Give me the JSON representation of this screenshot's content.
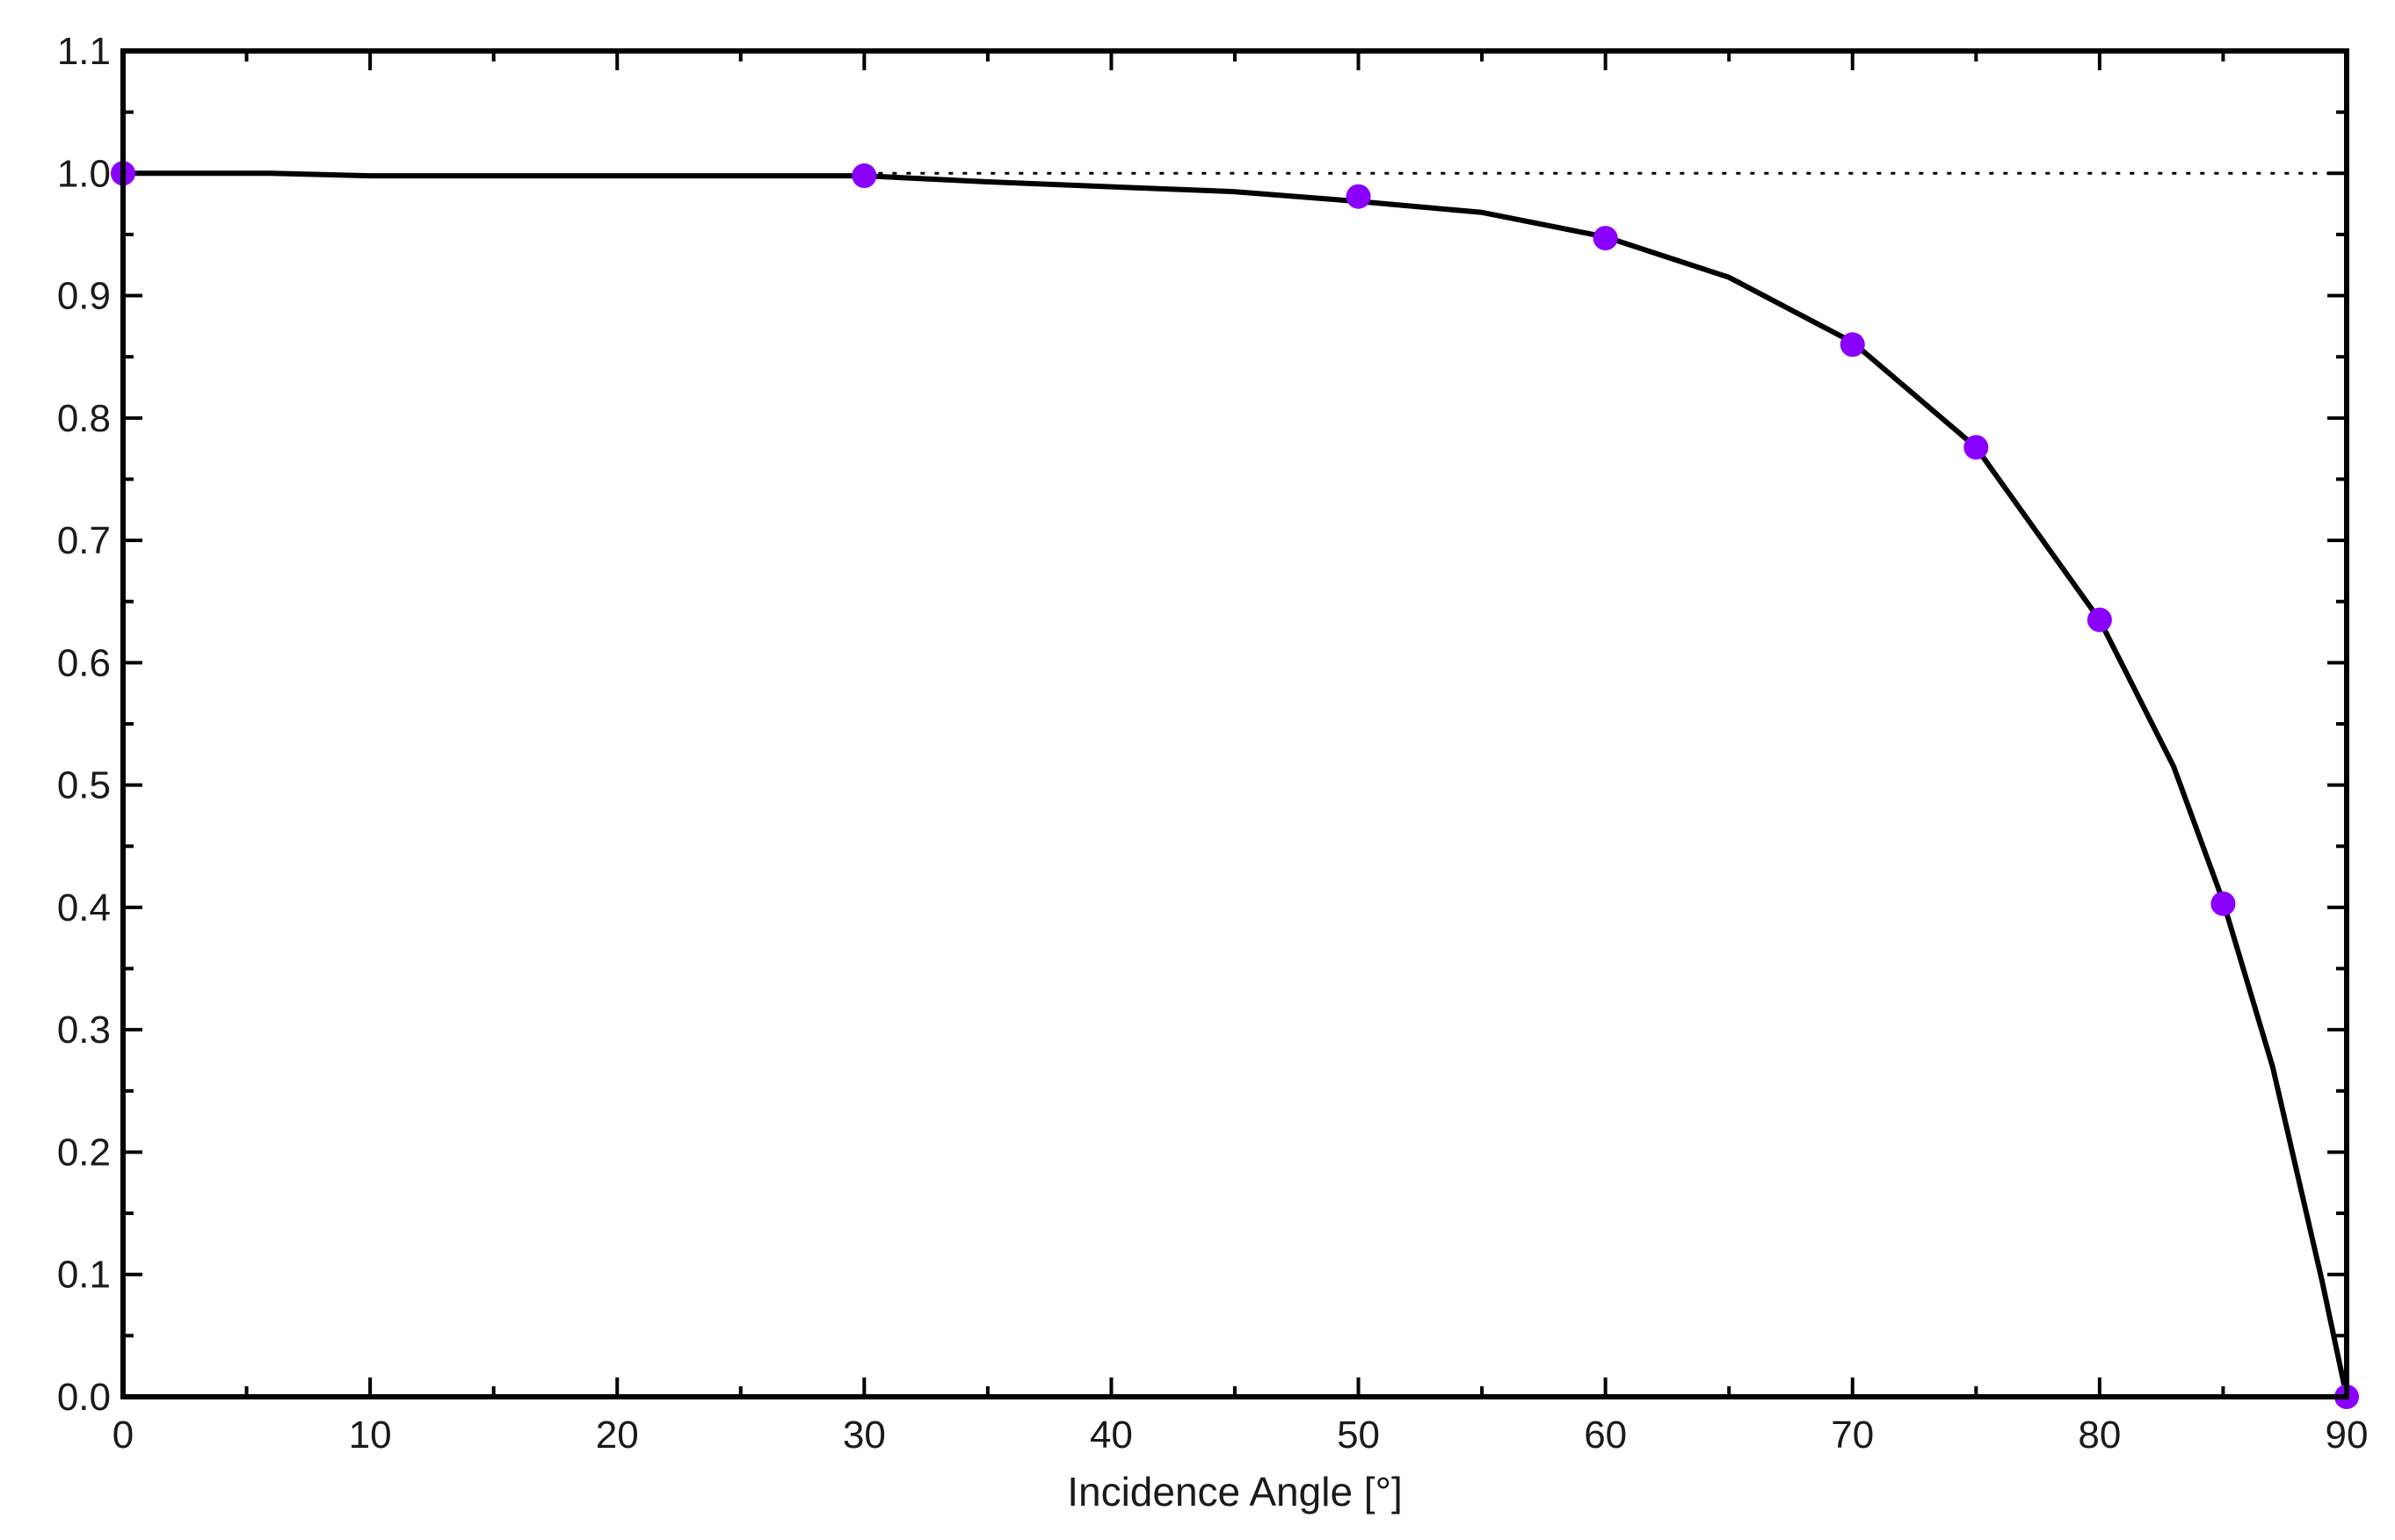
{
  "chart_data": {
    "type": "line",
    "title": "",
    "xlabel": "Incidence Angle [°]",
    "ylabel": "",
    "xlim": [
      0,
      90
    ],
    "ylim": [
      0,
      1.1
    ],
    "x_ticks": [
      0,
      10,
      20,
      30,
      40,
      50,
      60,
      70,
      80,
      90
    ],
    "y_ticks": [
      0.0,
      0.1,
      0.2,
      0.3,
      0.4,
      0.5,
      0.6,
      0.7,
      0.8,
      0.9,
      1.0,
      1.1
    ],
    "x_tick_labels": [
      "0",
      "10",
      "20",
      "30",
      "40",
      "50",
      "60",
      "70",
      "80",
      "90"
    ],
    "y_tick_labels": [
      "0.0",
      "0.1",
      "0.2",
      "0.3",
      "0.4",
      "0.5",
      "0.6",
      "0.7",
      "0.8",
      "0.9",
      "1.0",
      "1.1"
    ],
    "grid": false,
    "reference_line": {
      "y": 1.0,
      "style": "dotted",
      "x_from": 30,
      "x_to": 90
    },
    "series": [
      {
        "style": "line",
        "color": "#000000",
        "x": [
          0,
          6,
          10,
          20,
          30,
          35,
          40,
          45,
          50,
          55,
          60,
          65,
          70,
          75,
          80,
          83,
          85,
          87,
          89,
          90
        ],
        "y": [
          1.0,
          1.0,
          0.998,
          0.998,
          0.998,
          0.993,
          0.989,
          0.985,
          0.977,
          0.968,
          0.948,
          0.915,
          0.862,
          0.776,
          0.635,
          0.515,
          0.405,
          0.27,
          0.095,
          0.0
        ]
      },
      {
        "style": "markers",
        "color": "#8a00ff",
        "x": [
          0,
          30,
          50,
          60,
          70,
          75,
          80,
          85,
          90
        ],
        "y": [
          1.0,
          0.998,
          0.981,
          0.947,
          0.86,
          0.776,
          0.635,
          0.403,
          0.0
        ]
      }
    ]
  }
}
